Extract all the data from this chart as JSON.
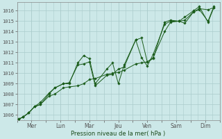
{
  "background_color": "#cce8e8",
  "grid_color": "#aacccc",
  "line_color": "#1a5c1a",
  "marker_color": "#1a5c1a",
  "xlabel": "Pression niveau de la mer( hPa )",
  "ylim": [
    1005.5,
    1016.8
  ],
  "yticks": [
    1006,
    1007,
    1008,
    1009,
    1010,
    1011,
    1012,
    1013,
    1014,
    1015,
    1016
  ],
  "xtick_labels": [
    "Mer",
    "Lun",
    "Mar",
    "Jeu",
    "Ven",
    "Sam",
    "Dim"
  ],
  "xlim": [
    0,
    7.0
  ],
  "xtick_positions": [
    0.5,
    1.5,
    2.5,
    3.5,
    4.5,
    5.5,
    6.5
  ],
  "series1_x": [
    0.05,
    0.2,
    0.4,
    0.6,
    0.8,
    1.1,
    1.3,
    1.6,
    1.8,
    2.1,
    2.3,
    2.5,
    2.7,
    3.1,
    3.3,
    3.5,
    3.7,
    4.1,
    4.3,
    4.5,
    4.7,
    5.1,
    5.3,
    5.6,
    5.8,
    6.1,
    6.3,
    6.6,
    6.8
  ],
  "series1_y": [
    1005.6,
    1005.8,
    1006.2,
    1006.8,
    1007.0,
    1007.8,
    1008.0,
    1008.6,
    1008.7,
    1008.8,
    1009.0,
    1009.4,
    1009.5,
    1009.9,
    1010.0,
    1010.1,
    1010.3,
    1010.9,
    1011.0,
    1011.1,
    1011.5,
    1014.0,
    1014.9,
    1015.0,
    1015.1,
    1015.9,
    1016.2,
    1016.1,
    1016.3
  ],
  "series2_x": [
    0.05,
    0.2,
    0.4,
    0.6,
    0.8,
    1.1,
    1.3,
    1.6,
    1.8,
    2.1,
    2.3,
    2.5,
    2.7,
    3.1,
    3.3,
    3.5,
    3.7,
    4.1,
    4.3,
    4.5,
    4.7,
    5.1,
    5.3,
    5.6,
    5.8,
    6.1,
    6.3,
    6.6,
    6.8
  ],
  "series2_y": [
    1005.6,
    1005.8,
    1006.2,
    1006.8,
    1007.0,
    1008.0,
    1008.6,
    1009.0,
    1009.0,
    1011.0,
    1011.7,
    1011.4,
    1009.0,
    1010.4,
    1011.0,
    1009.0,
    1010.8,
    1013.2,
    1011.5,
    1010.7,
    1011.8,
    1014.7,
    1015.0,
    1015.0,
    1015.4,
    1016.0,
    1016.4,
    1014.9,
    1016.3
  ],
  "series3_x": [
    0.05,
    0.2,
    0.4,
    0.6,
    0.8,
    1.1,
    1.3,
    1.6,
    1.8,
    2.1,
    2.3,
    2.5,
    2.7,
    3.1,
    3.3,
    3.5,
    3.7,
    4.1,
    4.3,
    4.5,
    4.7,
    5.1,
    5.3,
    5.6,
    5.8,
    6.1,
    6.3,
    6.6,
    6.8
  ],
  "series3_y": [
    1005.6,
    1005.8,
    1006.2,
    1006.8,
    1007.2,
    1008.1,
    1008.6,
    1009.0,
    1009.1,
    1010.8,
    1010.9,
    1011.1,
    1008.8,
    1009.8,
    1009.9,
    1010.4,
    1010.6,
    1013.2,
    1013.4,
    1011.1,
    1011.4,
    1014.9,
    1015.1,
    1015.0,
    1014.8,
    1015.9,
    1016.1,
    1015.0,
    1016.4
  ]
}
